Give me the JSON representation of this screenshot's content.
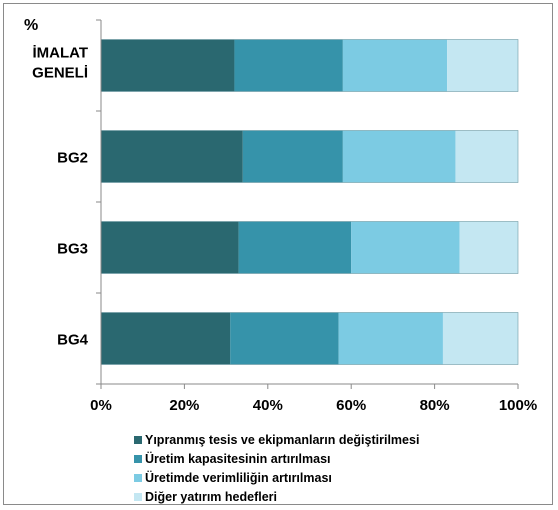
{
  "chart_data": {
    "type": "bar",
    "orientation": "horizontal",
    "stacked": true,
    "percent": true,
    "title": "",
    "ylabel": "%",
    "xlabel": "",
    "categories": [
      "İMALAT GENELİ",
      "BG2",
      "BG3",
      "BG4"
    ],
    "series": [
      {
        "name": "Yıpranmış tesis ve ekipmanların değiştirilmesi",
        "color": "#2a6870",
        "values": [
          32,
          34,
          33,
          31
        ]
      },
      {
        "name": "Üretim kapasitesinin artırılması",
        "color": "#3693aa",
        "values": [
          26,
          24,
          27,
          26
        ]
      },
      {
        "name": "Üretimde verimliliğin artırılması",
        "color": "#7ccbe3",
        "values": [
          25,
          27,
          26,
          25
        ]
      },
      {
        "name": "Diğer yatırım hedefleri",
        "color": "#c4e7f2",
        "values": [
          17,
          15,
          14,
          18
        ]
      }
    ],
    "xticks": [
      "0%",
      "20%",
      "40%",
      "60%",
      "80%",
      "100%"
    ],
    "xlim": [
      0,
      100
    ],
    "grid": false,
    "legend": "bottom"
  }
}
